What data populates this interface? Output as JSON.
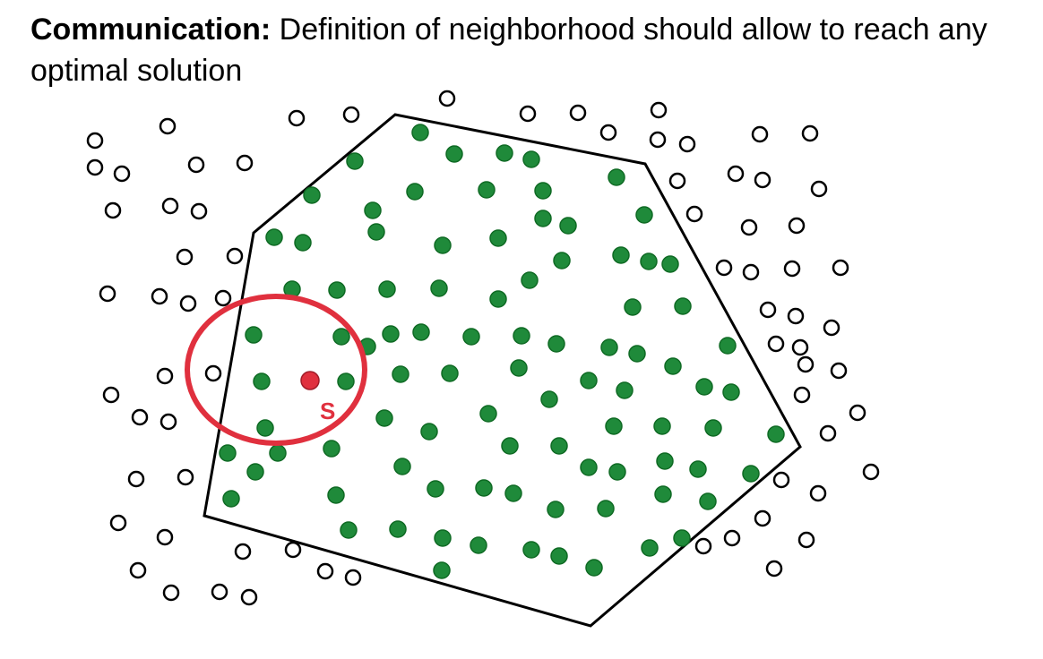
{
  "heading": {
    "bold": "Communication:",
    "rest": " Definition of neighborhood should allow to reach any optimal solution"
  },
  "colors": {
    "feasible": "#1f8a3a",
    "feasible_stroke": "#0f6a24",
    "infeasible_stroke": "#000000",
    "boundary": "#000000",
    "neighborhood": "#e0303e",
    "current": "#e0303e"
  },
  "current_solution_label": "S"
}
